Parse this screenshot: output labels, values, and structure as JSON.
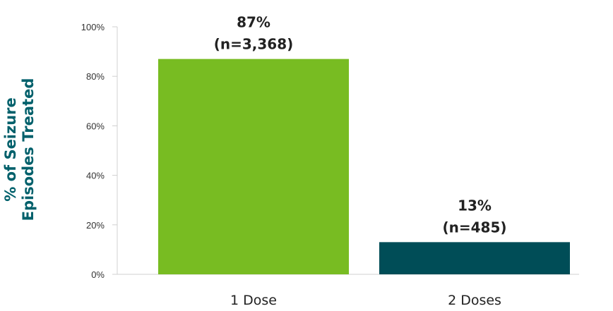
{
  "chart_data": {
    "type": "bar",
    "ylabel_lines": [
      "% of Seizure",
      "Episodes Treated"
    ],
    "categories": [
      "1 Dose",
      "2 Doses"
    ],
    "values": [
      87,
      13
    ],
    "value_labels": [
      "87%",
      "13%"
    ],
    "count_labels": [
      "(n=3,368)",
      "(n=485)"
    ],
    "ylim": [
      0,
      100
    ],
    "yticks": [
      0,
      20,
      40,
      60,
      80,
      100
    ],
    "ytick_labels": [
      "0%",
      "20%",
      "40%",
      "60%",
      "80%",
      "100%"
    ],
    "grid": false,
    "legend": "none",
    "colors": [
      "#78bc22",
      "#004d57"
    ],
    "ylabel_color": "#00606b"
  }
}
